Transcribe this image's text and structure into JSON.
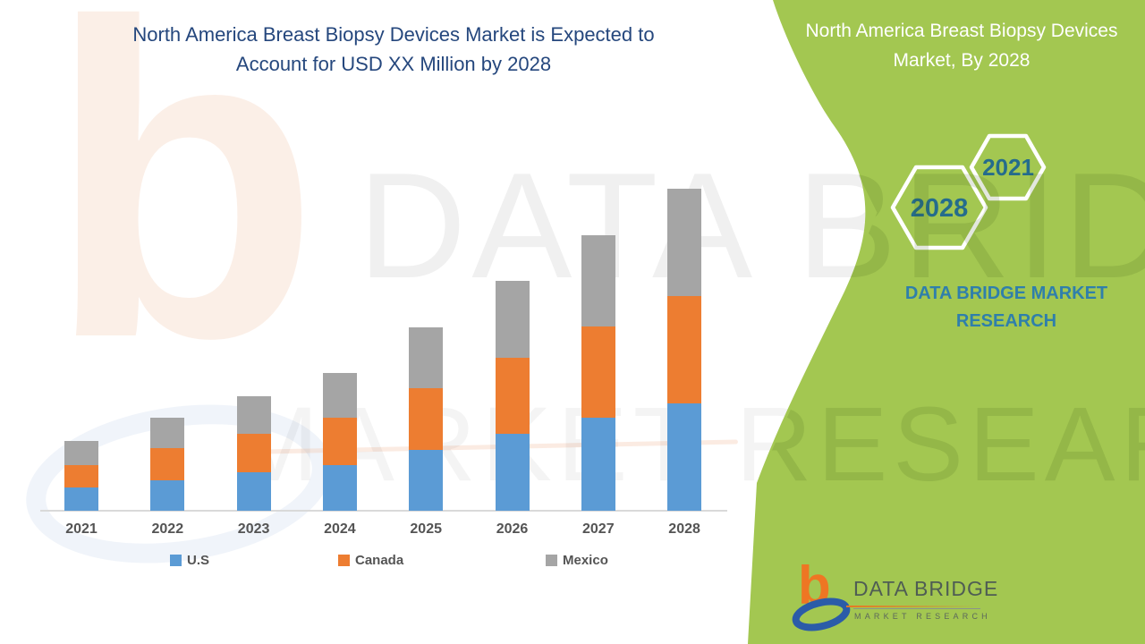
{
  "header": {
    "title_line1": "North America Breast Biopsy Devices Market is Expected to",
    "title_line2": "Account for USD XX Million by 2028"
  },
  "side_panel": {
    "title_line1": "North America Breast Biopsy Devices",
    "title_line2": "Market, By 2028",
    "hexagons": [
      {
        "label": "2028"
      },
      {
        "label": "2021"
      }
    ],
    "brand_line1": "DATA BRIDGE MARKET",
    "brand_line2": "RESEARCH",
    "panel_color": "#a3c751",
    "hexagon_text_color": "#256c8c",
    "brand_text_color": "#2f7fab"
  },
  "watermark": {
    "line1": "DATA BRIDGE",
    "line2": "MARKET RESEARCH"
  },
  "logo": {
    "b_glyph": "b",
    "name_text": "DATA BRIDGE",
    "sub_text": "MARKET RESEARCH",
    "b_color": "#ee7623",
    "swoosh_color": "#2b5ca8"
  },
  "chart_data": {
    "type": "bar",
    "stacked": true,
    "title": "",
    "xlabel": "",
    "ylabel": "",
    "y_axis_visible": false,
    "value_units": "relative estimated units (chart displays no value axis)",
    "ylim": [
      0,
      381
    ],
    "grid": false,
    "legend_position": "bottom",
    "axis_line_color": "#d9d9d9",
    "categories": [
      "2021",
      "2022",
      "2023",
      "2024",
      "2025",
      "2026",
      "2027",
      "2028"
    ],
    "series": [
      {
        "name": "U.S",
        "color": "#5b9bd5",
        "values": [
          26,
          34,
          43,
          51,
          68,
          86,
          104,
          120
        ]
      },
      {
        "name": "Canada",
        "color": "#ed7d31",
        "values": [
          25,
          36,
          43,
          53,
          69,
          85,
          102,
          120
        ]
      },
      {
        "name": "Mexico",
        "color": "#a5a5a5",
        "values": [
          27,
          34,
          42,
          50,
          68,
          86,
          102,
          120
        ]
      }
    ]
  }
}
